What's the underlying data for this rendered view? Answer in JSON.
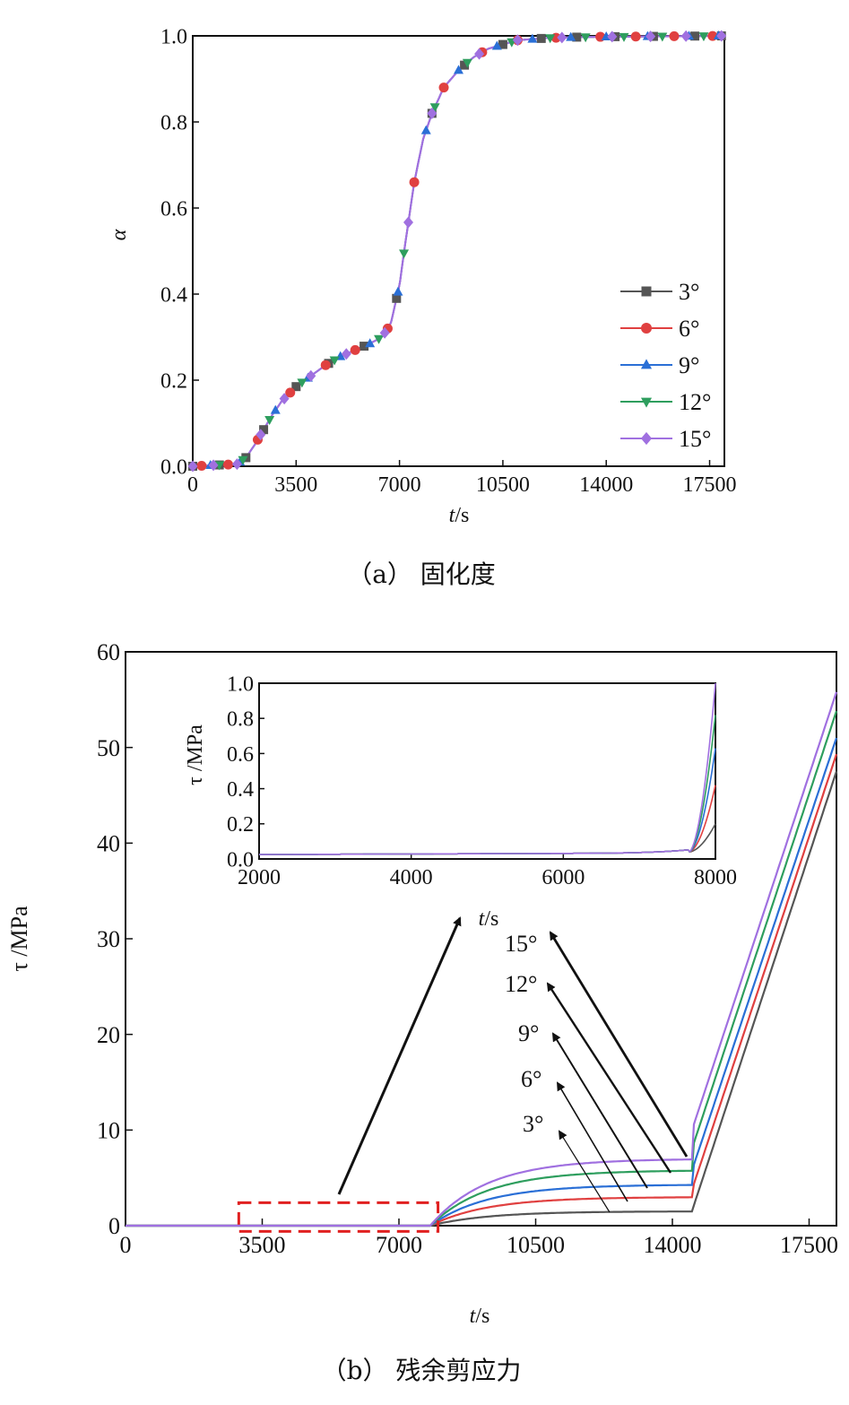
{
  "captions": {
    "a": "（a）  固化度",
    "b": "（b）  残余剪应力"
  },
  "chart_data": [
    {
      "type": "line",
      "panel": "a",
      "ylabel": "α",
      "xlabel_italic": "t",
      "xlabel_unit": "/s",
      "xlim": [
        0,
        18000
      ],
      "ylim": [
        0,
        1
      ],
      "xticks": [
        0,
        3500,
        7000,
        10500,
        14000,
        17500
      ],
      "xtick_labels": [
        "0",
        "3500",
        "7000",
        "10500",
        "14000",
        "17500"
      ],
      "yticks": [
        0,
        0.2,
        0.4,
        0.6,
        0.8,
        1.0
      ],
      "ytick_labels": [
        "0.0",
        "0.2",
        "0.4",
        "0.6",
        "0.8",
        "1.0"
      ],
      "legend_position": "bottom-right",
      "series": [
        {
          "name": "3°",
          "color": "#555555",
          "marker": "square",
          "markers_x": [
            0,
            900,
            1800,
            2400,
            3500,
            4600,
            5800,
            6900,
            8100,
            9200,
            10500,
            11800,
            13000,
            14300,
            15600,
            17000,
            17900
          ]
        },
        {
          "name": "6°",
          "color": "#e04040",
          "marker": "circle",
          "markers_x": [
            300,
            1200,
            2200,
            3300,
            4500,
            5500,
            6600,
            7500,
            8500,
            9800,
            11000,
            12300,
            13800,
            15000,
            16300,
            17600
          ]
        },
        {
          "name": "9°",
          "color": "#2a6fd6",
          "marker": "triangle-up",
          "markers_x": [
            600,
            1600,
            2800,
            3900,
            5000,
            6000,
            6950,
            7900,
            9000,
            10300,
            11500,
            12800,
            14000,
            15400,
            16800,
            17800
          ]
        },
        {
          "name": "12°",
          "color": "#2e9e5e",
          "marker": "triangle-down",
          "markers_x": [
            900,
            1700,
            2600,
            3700,
            4800,
            6300,
            7150,
            8200,
            9300,
            10800,
            12100,
            13300,
            14600,
            15900,
            17300
          ]
        },
        {
          "name": "15°",
          "color": "#a070e0",
          "marker": "diamond",
          "markers_x": [
            0,
            700,
            1500,
            2300,
            3100,
            4000,
            5200,
            6500,
            7300,
            8100,
            9700,
            11000,
            12500,
            14200,
            15500,
            16700,
            17900
          ]
        }
      ],
      "curve_common": {
        "x": [
          0,
          1500,
          1800,
          2100,
          2400,
          2700,
          3000,
          3500,
          4000,
          4500,
          5000,
          5500,
          6000,
          6400,
          6700,
          7000,
          7200,
          7500,
          7800,
          8100,
          8500,
          9000,
          9500,
          10000,
          10500,
          11000,
          12000,
          13000,
          14000,
          16000,
          18000
        ],
        "y": [
          0,
          0.005,
          0.02,
          0.05,
          0.085,
          0.12,
          0.15,
          0.185,
          0.21,
          0.235,
          0.255,
          0.27,
          0.285,
          0.3,
          0.33,
          0.42,
          0.52,
          0.66,
          0.76,
          0.82,
          0.88,
          0.92,
          0.95,
          0.97,
          0.98,
          0.99,
          0.995,
          0.997,
          0.998,
          0.999,
          1.0
        ]
      }
    },
    {
      "type": "line",
      "panel": "b",
      "ylabel": "τ /MPa",
      "xlabel_italic": "t",
      "xlabel_unit": "/s",
      "xlim": [
        0,
        18200
      ],
      "ylim": [
        0,
        60
      ],
      "xticks": [
        0,
        3500,
        7000,
        10500,
        14000,
        17500
      ],
      "xtick_labels": [
        "0",
        "3500",
        "7000",
        "10500",
        "14000",
        "17500"
      ],
      "yticks": [
        0,
        10,
        20,
        30,
        40,
        50,
        60
      ],
      "ytick_labels": [
        "0",
        "10",
        "20",
        "30",
        "40",
        "50",
        "60"
      ],
      "highlight_box": {
        "x": [
          2900,
          8000
        ],
        "y": [
          -0.6,
          2.4
        ],
        "color": "#e02020"
      },
      "annotations": [
        "3°",
        "6°",
        "9°",
        "12°",
        "15°"
      ],
      "series": [
        {
          "name": "3°",
          "color": "#555555",
          "plateau": 1.5,
          "final": 47.5
        },
        {
          "name": "6°",
          "color": "#e04040",
          "plateau": 3.0,
          "final": 49.3
        },
        {
          "name": "9°",
          "color": "#2a6fd6",
          "plateau": 4.3,
          "final": 51.0
        },
        {
          "name": "12°",
          "color": "#2e9e5e",
          "plateau": 5.8,
          "final": 53.8
        },
        {
          "name": "15°",
          "color": "#a070e0",
          "plateau": 7.0,
          "final": 55.8
        }
      ],
      "inset": {
        "ylabel": "τ /MPa",
        "xlabel_italic": "t",
        "xlabel_unit": "/s",
        "xlim": [
          2000,
          8000
        ],
        "ylim": [
          0,
          1
        ],
        "xticks": [
          2000,
          4000,
          6000,
          8000
        ],
        "xtick_labels": [
          "2000",
          "4000",
          "6000",
          "8000"
        ],
        "yticks": [
          0,
          0.2,
          0.4,
          0.6,
          0.8,
          1.0
        ],
        "ytick_labels": [
          "0.0",
          "0.2",
          "0.4",
          "0.6",
          "0.8",
          "1.0"
        ],
        "series_end_values": [
          0.2,
          0.42,
          0.63,
          0.82,
          1.0
        ]
      }
    }
  ]
}
